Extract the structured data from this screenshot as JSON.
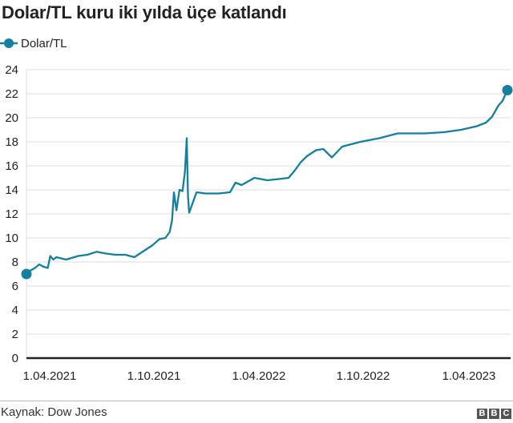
{
  "title": "Dolar/TL kuru iki yılda üçe katlandı",
  "legend": {
    "label": "Dolar/TL",
    "icon": "line-dot-icon"
  },
  "source": "Kaynak: Dow Jones",
  "logo": [
    "B",
    "B",
    "C"
  ],
  "colors": {
    "line": "#1380a1",
    "grid": "#dddddd",
    "axis": "#222222",
    "text": "#222222"
  },
  "axis": {
    "y_ticks": [
      "0",
      "2",
      "4",
      "6",
      "8",
      "10",
      "12",
      "14",
      "16",
      "18",
      "20",
      "22",
      "24"
    ],
    "x_ticks": [
      "1.04.2021",
      "1.10.2021",
      "1.04.2022",
      "1.10.2022",
      "1.04.2023"
    ]
  },
  "chart_data": {
    "type": "line",
    "title": "Dolar/TL kuru iki yılda üçe katlandı",
    "xlabel": "",
    "ylabel": "",
    "ylim": [
      0,
      24
    ],
    "y_ticks": [
      0,
      2,
      4,
      6,
      8,
      10,
      12,
      14,
      16,
      18,
      20,
      22,
      24
    ],
    "x_ticks": [
      "1.04.2021",
      "1.10.2021",
      "1.04.2022",
      "1.10.2022",
      "1.04.2023"
    ],
    "grid": true,
    "legend_position": "top-left",
    "series": [
      {
        "name": "Dolar/TL",
        "x": [
          "2021-04-01",
          "2021-04-08",
          "2021-04-15",
          "2021-04-22",
          "2021-04-29",
          "2021-05-06",
          "2021-05-10",
          "2021-05-15",
          "2021-05-20",
          "2021-06-05",
          "2021-06-25",
          "2021-07-10",
          "2021-07-25",
          "2021-08-10",
          "2021-08-25",
          "2021-09-10",
          "2021-09-25",
          "2021-10-10",
          "2021-10-25",
          "2021-11-05",
          "2021-11-15",
          "2021-11-22",
          "2021-11-26",
          "2021-11-29",
          "2021-12-03",
          "2021-12-08",
          "2021-12-13",
          "2021-12-17",
          "2021-12-20",
          "2021-12-22",
          "2021-12-24",
          "2022-01-05",
          "2022-01-20",
          "2022-02-10",
          "2022-03-01",
          "2022-03-10",
          "2022-03-20",
          "2022-04-10",
          "2022-05-01",
          "2022-05-20",
          "2022-06-05",
          "2022-06-15",
          "2022-06-25",
          "2022-07-05",
          "2022-07-20",
          "2022-08-01",
          "2022-08-15",
          "2022-09-01",
          "2022-10-01",
          "2022-11-01",
          "2022-12-01",
          "2023-01-15",
          "2023-02-15",
          "2023-03-15",
          "2023-04-10",
          "2023-04-25",
          "2023-05-05",
          "2023-05-15",
          "2023-05-22",
          "2023-05-30"
        ],
        "values": [
          7.0,
          7.3,
          7.5,
          7.8,
          7.6,
          7.5,
          8.5,
          8.2,
          8.4,
          8.2,
          8.5,
          8.6,
          8.85,
          8.7,
          8.6,
          8.6,
          8.4,
          8.9,
          9.4,
          9.9,
          10.0,
          10.5,
          11.5,
          13.8,
          12.3,
          14.0,
          13.9,
          15.5,
          18.3,
          13.5,
          12.1,
          13.8,
          13.7,
          13.7,
          13.8,
          14.6,
          14.4,
          15.0,
          14.8,
          14.9,
          15.0,
          15.6,
          16.3,
          16.8,
          17.3,
          17.4,
          16.7,
          17.6,
          18.0,
          18.3,
          18.7,
          18.7,
          18.8,
          19.0,
          19.3,
          19.6,
          20.1,
          21.0,
          21.4,
          22.3
        ]
      }
    ],
    "annotations": [
      "start marker ~7.0 (1.04.2021)",
      "end marker ~22.3 (May 2023)"
    ]
  }
}
